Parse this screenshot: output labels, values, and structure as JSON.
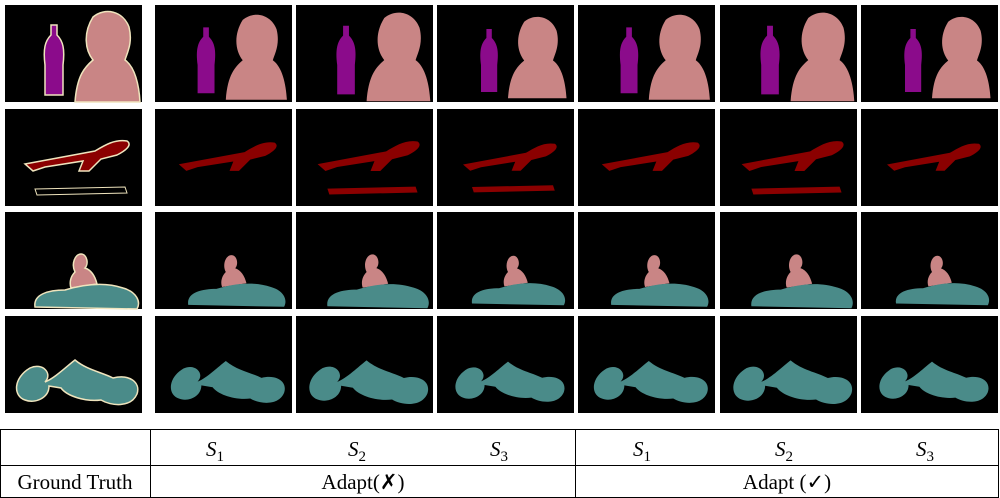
{
  "table": {
    "header": [
      "",
      {
        "symbol": "S",
        "subscript": "1"
      },
      {
        "symbol": "S",
        "subscript": "2"
      },
      {
        "symbol": "S",
        "subscript": "3"
      },
      {
        "symbol": "S",
        "subscript": "1"
      },
      {
        "symbol": "S",
        "subscript": "2"
      },
      {
        "symbol": "S",
        "subscript": "3"
      }
    ],
    "footer": [
      "Ground Truth",
      "Adapt(✗)",
      "Adapt (✓)"
    ]
  }
}
